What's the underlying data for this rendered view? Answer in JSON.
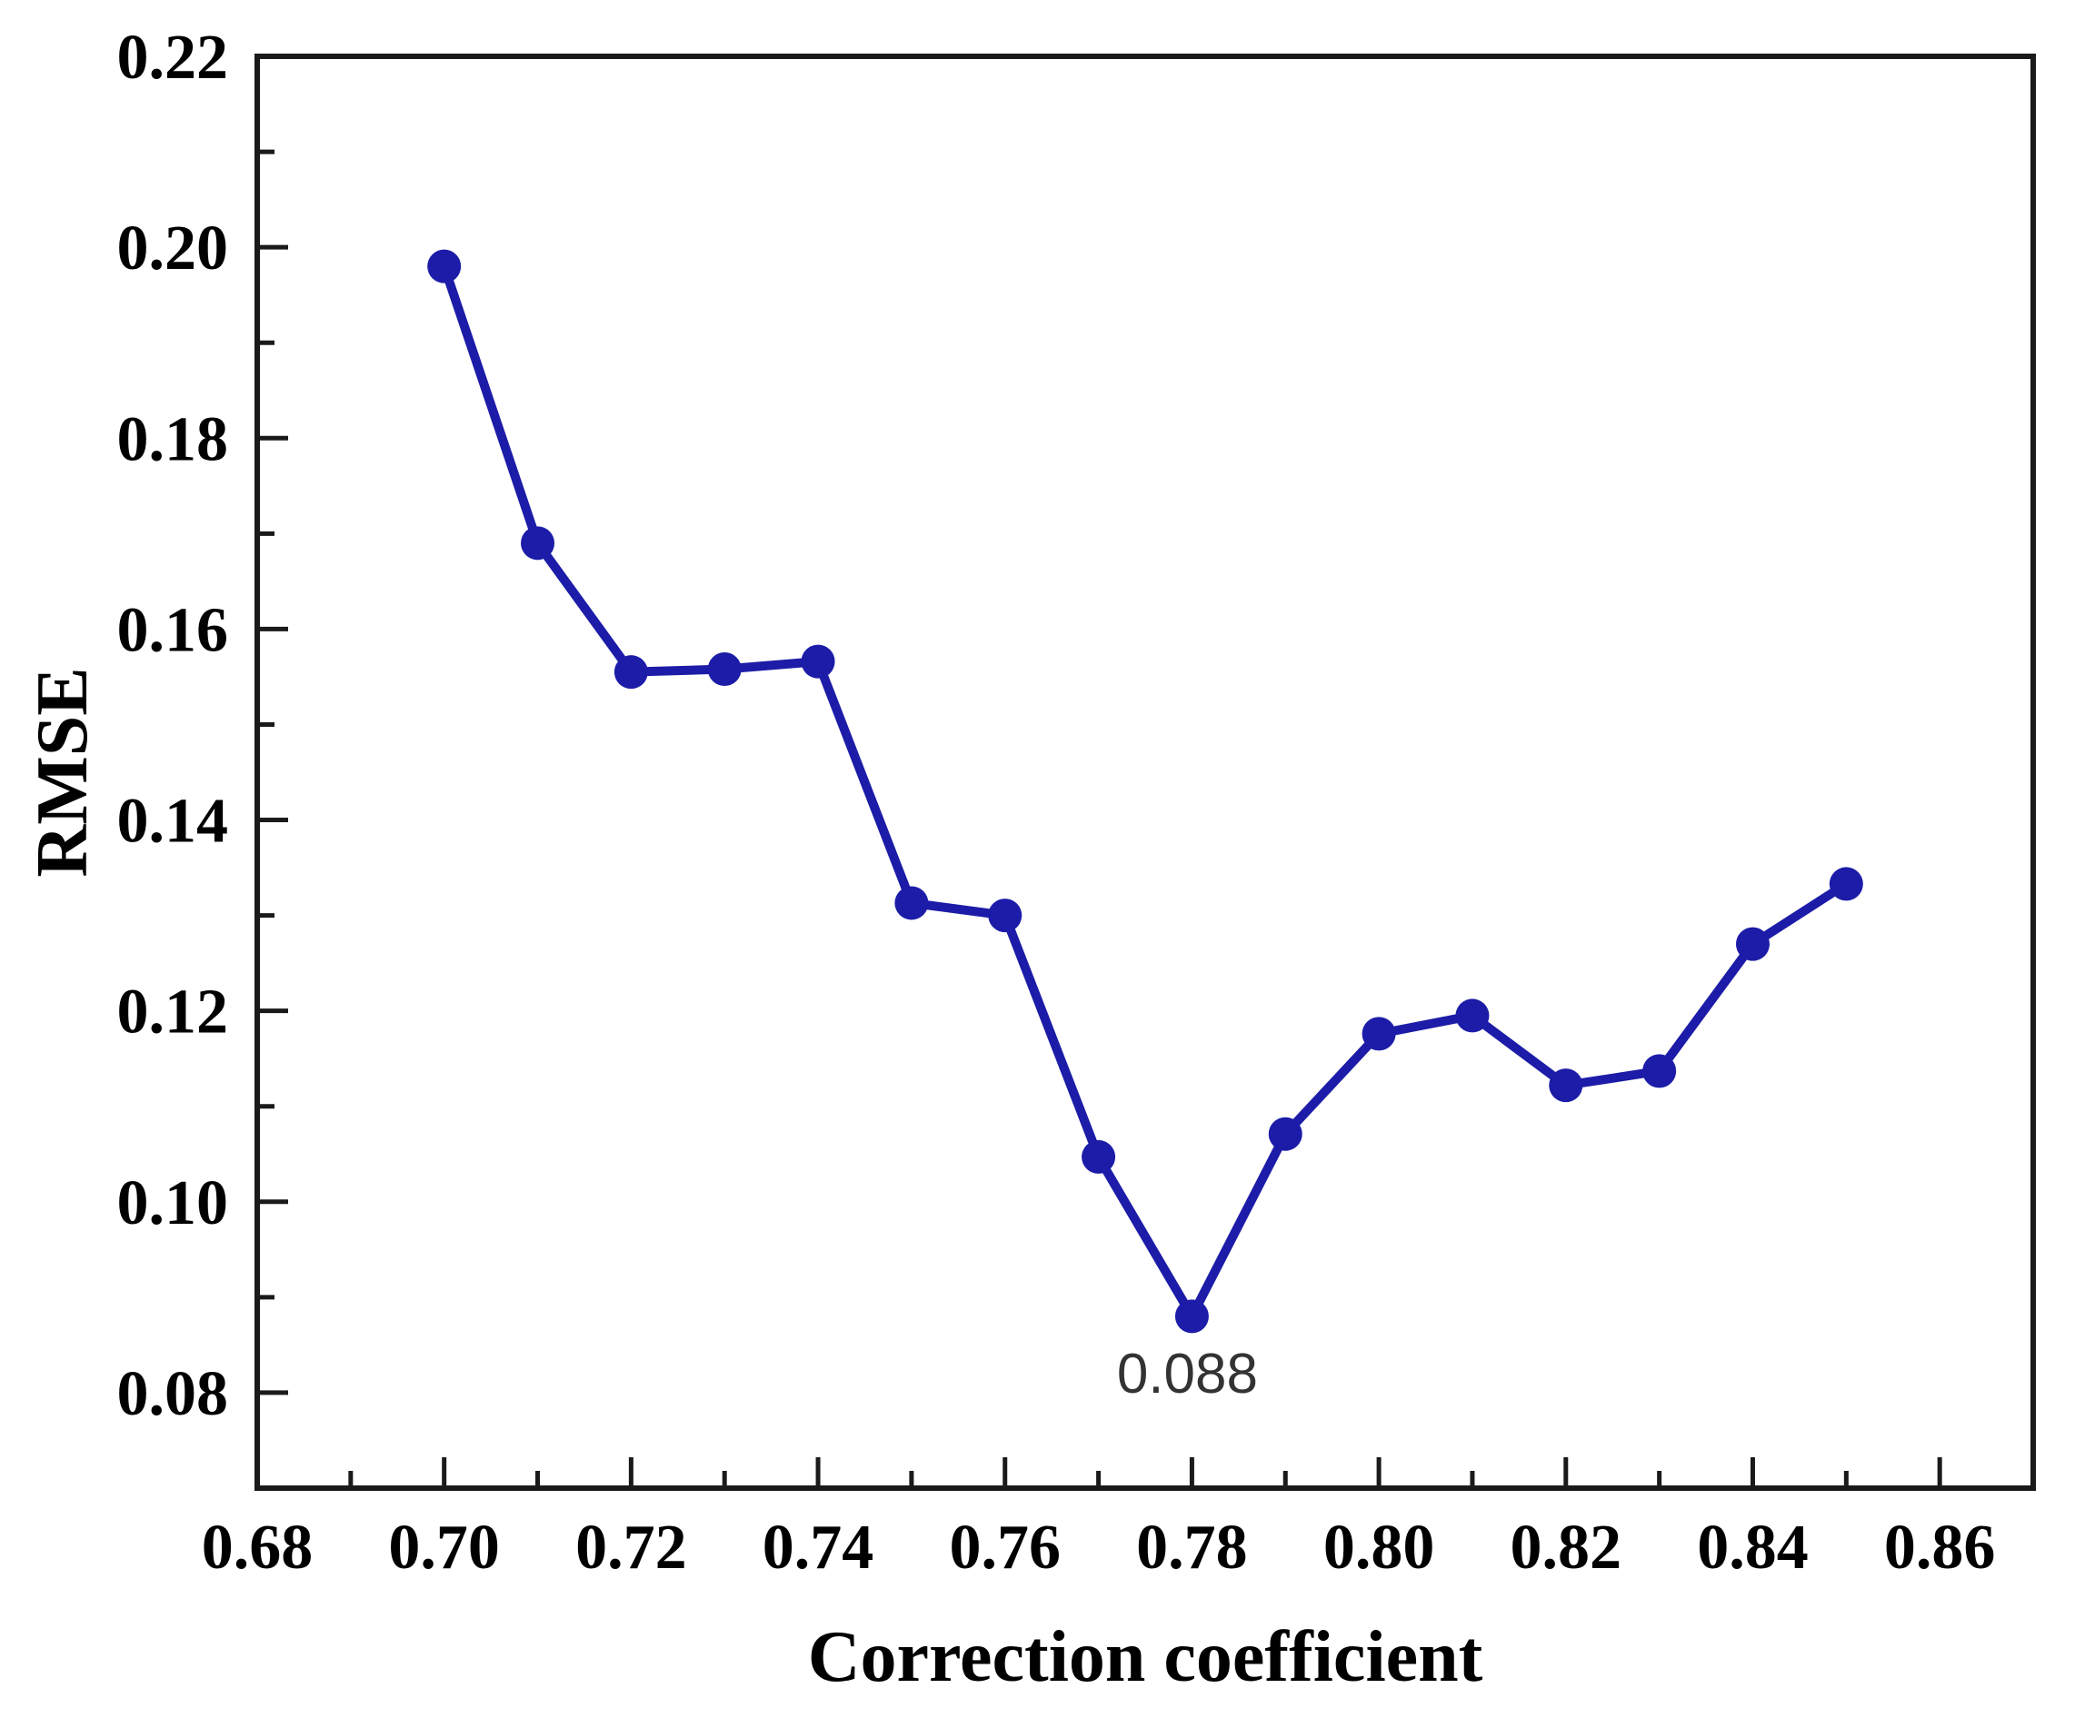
{
  "chart_data": {
    "type": "line",
    "title": "",
    "xlabel": "Correction coefficient",
    "ylabel": "RMSE",
    "x": [
      0.7,
      0.71,
      0.72,
      0.73,
      0.74,
      0.75,
      0.76,
      0.77,
      0.78,
      0.79,
      0.8,
      0.81,
      0.82,
      0.83,
      0.84,
      0.85
    ],
    "y": [
      0.198,
      0.169,
      0.1555,
      0.1558,
      0.1566,
      0.1313,
      0.13,
      0.1047,
      0.088,
      0.1071,
      0.1176,
      0.1195,
      0.1122,
      0.1137,
      0.127,
      0.1333
    ],
    "xlim": [
      0.68,
      0.87
    ],
    "ylim": [
      0.07,
      0.22
    ],
    "x_major_ticks": [
      0.68,
      0.7,
      0.72,
      0.74,
      0.76,
      0.78,
      0.8,
      0.82,
      0.84,
      0.86
    ],
    "y_major_ticks": [
      0.08,
      0.1,
      0.12,
      0.14,
      0.16,
      0.18,
      0.2,
      0.22
    ],
    "tick_label_decimals": 2,
    "grid": false,
    "legend": null,
    "annotation": {
      "text": "0.088",
      "x": 0.78,
      "y": 0.088
    },
    "colors": {
      "line": "#1c1ca8",
      "marker": "#1c1ca8",
      "axis": "#1a1a1a",
      "tick_label": "#000000",
      "annotation_text": "#333333",
      "background": "#ffffff"
    }
  }
}
